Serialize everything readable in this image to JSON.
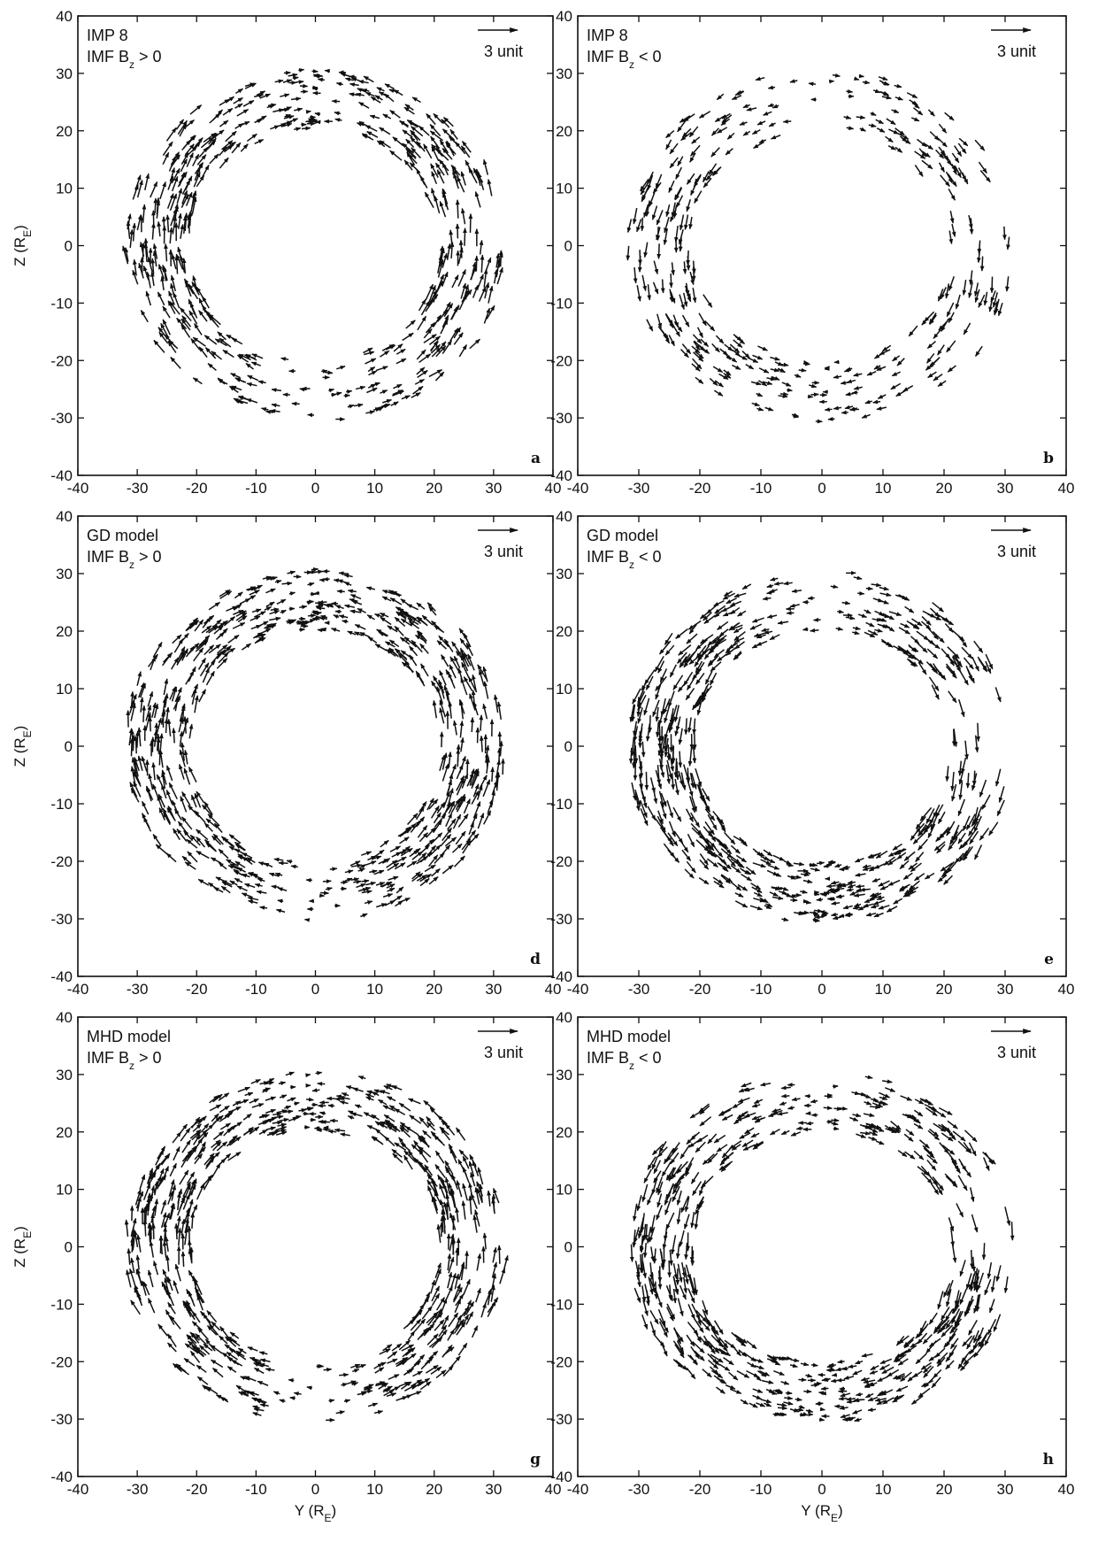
{
  "figure": {
    "x_axis_label_bottom": "Y (R",
    "x_axis_label_sub": "E",
    "y_axis_label": "Z (R",
    "y_axis_label_sub": "E",
    "ticks": [
      "-40",
      "-30",
      "-20",
      "-10",
      "0",
      "10",
      "20",
      "30",
      "40"
    ],
    "scale_label": "3 unit",
    "imf_prefix": "IMF B",
    "imf_sub": "z"
  },
  "chart_data": [
    {
      "type": "quiver",
      "id": "a",
      "panel_letter": "a",
      "title_line1": "IMP 8",
      "imf_condition": " > 0",
      "xlim": [
        -40,
        40
      ],
      "ylim": [
        -40,
        40
      ],
      "flow_direction": "northward",
      "ring_outer_radius": 32,
      "ring_inner_radius": 21,
      "scale_vector": 3,
      "density": "medium"
    },
    {
      "type": "quiver",
      "id": "b",
      "panel_letter": "b",
      "title_line1": "IMP 8",
      "imf_condition": " < 0",
      "xlim": [
        -40,
        40
      ],
      "ylim": [
        -40,
        40
      ],
      "flow_direction": "southward",
      "ring_outer_radius": 32,
      "ring_inner_radius": 21,
      "scale_vector": 3,
      "density": "sparse"
    },
    {
      "type": "quiver",
      "id": "d",
      "panel_letter": "d",
      "title_line1": "GD model",
      "imf_condition": " > 0",
      "xlim": [
        -40,
        40
      ],
      "ylim": [
        -40,
        40
      ],
      "flow_direction": "northward",
      "ring_outer_radius": 32,
      "ring_inner_radius": 21,
      "scale_vector": 3,
      "density": "dense"
    },
    {
      "type": "quiver",
      "id": "e",
      "panel_letter": "e",
      "title_line1": "GD model",
      "imf_condition": " < 0",
      "xlim": [
        -40,
        40
      ],
      "ylim": [
        -40,
        40
      ],
      "flow_direction": "southward",
      "ring_outer_radius": 32,
      "ring_inner_radius": 21,
      "scale_vector": 3,
      "density": "dense"
    },
    {
      "type": "quiver",
      "id": "g",
      "panel_letter": "g",
      "title_line1": "MHD model",
      "imf_condition": " > 0",
      "xlim": [
        -40,
        40
      ],
      "ylim": [
        -40,
        40
      ],
      "flow_direction": "northward",
      "ring_outer_radius": 32,
      "ring_inner_radius": 21,
      "scale_vector": 3,
      "density": "dense"
    },
    {
      "type": "quiver",
      "id": "h",
      "panel_letter": "h",
      "title_line1": "MHD model",
      "imf_condition": " < 0",
      "xlim": [
        -40,
        40
      ],
      "ylim": [
        -40,
        40
      ],
      "flow_direction": "southward",
      "ring_outer_radius": 32,
      "ring_inner_radius": 21,
      "scale_vector": 3,
      "density": "dense"
    }
  ]
}
